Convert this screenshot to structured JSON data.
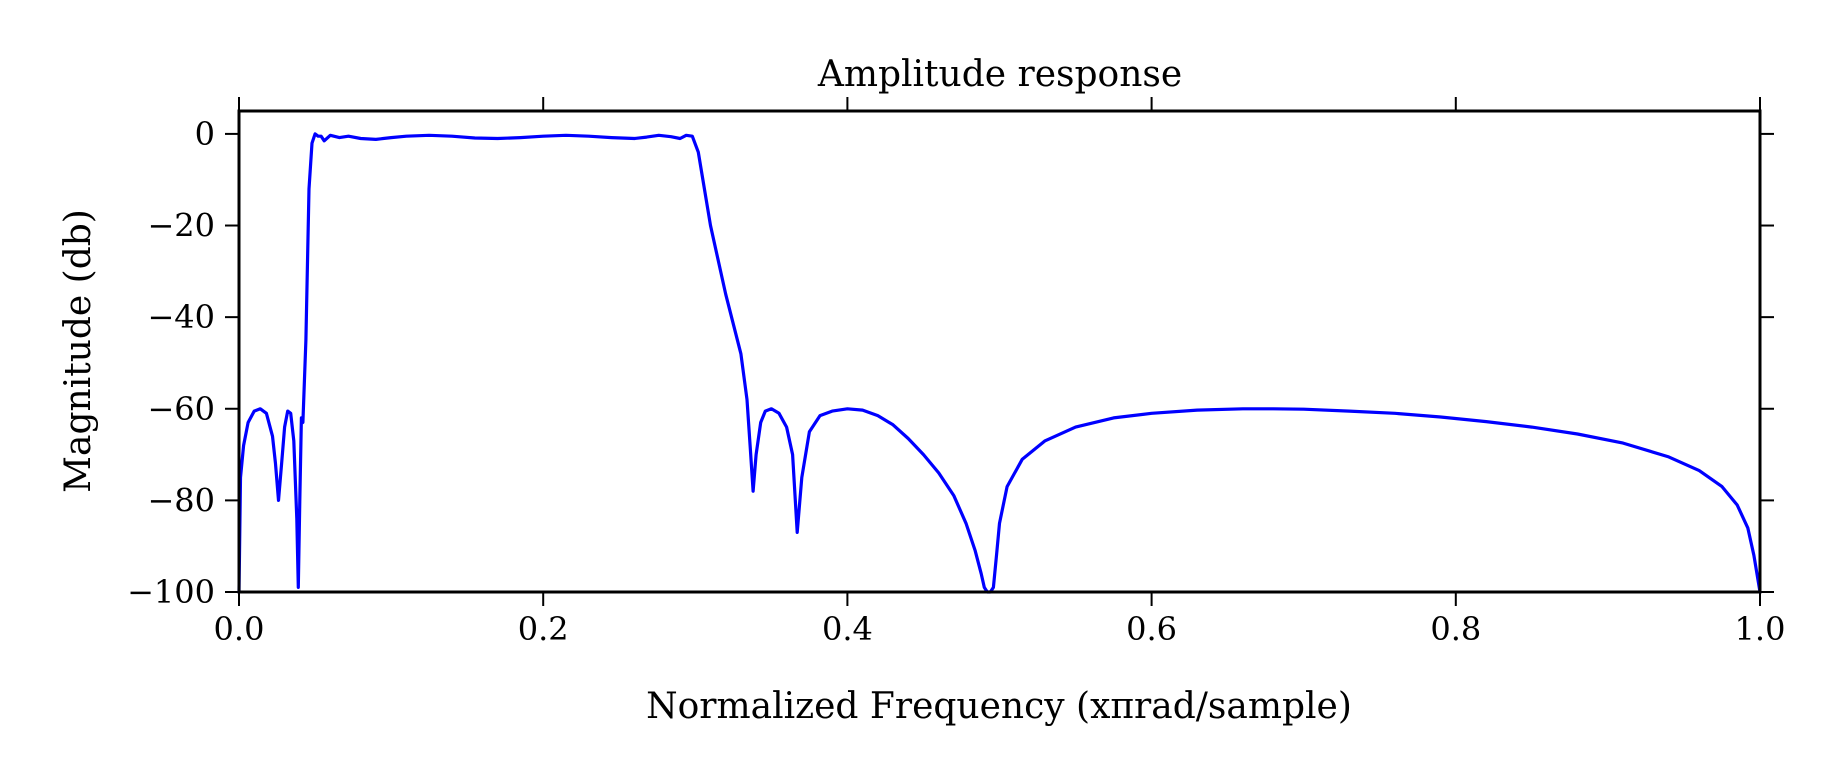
{
  "chart_data": {
    "type": "line",
    "title": "Amplitude response",
    "xlabel": "Normalized Frequency (xπrad/sample)",
    "ylabel": "Magnitude (db)",
    "xlim": [
      0.0,
      1.0
    ],
    "ylim": [
      -100,
      5
    ],
    "xticks": [
      0.0,
      0.2,
      0.4,
      0.6,
      0.8,
      1.0
    ],
    "xtick_labels": [
      "0.0",
      "0.2",
      "0.4",
      "0.6",
      "0.8",
      "1.0"
    ],
    "yticks": [
      0,
      -20,
      -40,
      -60,
      -80,
      -100
    ],
    "ytick_labels": [
      "0",
      "−20",
      "−40",
      "−60",
      "−80",
      "−100"
    ],
    "grid": false,
    "line_color": "#0000ff",
    "series": [
      {
        "x": [
          0.0,
          0.001,
          0.003,
          0.006,
          0.01,
          0.014,
          0.018,
          0.022,
          0.024,
          0.026,
          0.028,
          0.03,
          0.032,
          0.034,
          0.036,
          0.038,
          0.039,
          0.04,
          0.041,
          0.042,
          0.044,
          0.046,
          0.048,
          0.05,
          0.052,
          0.054,
          0.056,
          0.06,
          0.066,
          0.072,
          0.08,
          0.09,
          0.1,
          0.11,
          0.125,
          0.14,
          0.155,
          0.17,
          0.185,
          0.2,
          0.215,
          0.23,
          0.245,
          0.26,
          0.268,
          0.276,
          0.284,
          0.29,
          0.294,
          0.298,
          0.302,
          0.31,
          0.32,
          0.33,
          0.334,
          0.336,
          0.338,
          0.34,
          0.343,
          0.346,
          0.35,
          0.355,
          0.36,
          0.364,
          0.367,
          0.37,
          0.375,
          0.382,
          0.39,
          0.4,
          0.41,
          0.42,
          0.43,
          0.44,
          0.45,
          0.46,
          0.47,
          0.478,
          0.484,
          0.488,
          0.49,
          0.492,
          0.494,
          0.496,
          0.498,
          0.5,
          0.505,
          0.515,
          0.53,
          0.55,
          0.575,
          0.6,
          0.63,
          0.66,
          0.68,
          0.7,
          0.73,
          0.76,
          0.79,
          0.82,
          0.85,
          0.88,
          0.91,
          0.94,
          0.96,
          0.975,
          0.985,
          0.992,
          0.996,
          1.0
        ],
        "y": [
          -100,
          -75,
          -68,
          -63,
          -60.5,
          -60,
          -61,
          -66,
          -72,
          -80,
          -72,
          -64,
          -60.5,
          -61,
          -67,
          -84,
          -99,
          -80,
          -62,
          -63,
          -45,
          -12,
          -2,
          0,
          -0.5,
          -0.5,
          -1.5,
          -0.3,
          -0.8,
          -0.5,
          -1,
          -1.2,
          -0.8,
          -0.5,
          -0.3,
          -0.5,
          -0.9,
          -1,
          -0.8,
          -0.5,
          -0.3,
          -0.5,
          -0.8,
          -1,
          -0.7,
          -0.3,
          -0.6,
          -1,
          -0.3,
          -0.5,
          -4,
          -20,
          -35,
          -48,
          -58,
          -68,
          -78,
          -70,
          -63,
          -60.5,
          -60,
          -61,
          -64,
          -70,
          -87,
          -75,
          -65,
          -61.5,
          -60.5,
          -60,
          -60.3,
          -61.5,
          -63.5,
          -66.5,
          -70,
          -74,
          -79,
          -85,
          -91,
          -96,
          -99,
          -100,
          -100,
          -99,
          -92,
          -85,
          -77,
          -71,
          -67,
          -64,
          -62,
          -61,
          -60.3,
          -60,
          -60,
          -60.1,
          -60.5,
          -61,
          -61.8,
          -62.8,
          -64,
          -65.5,
          -67.5,
          -70.5,
          -73.5,
          -77,
          -81,
          -86,
          -92,
          -100
        ]
      }
    ]
  }
}
